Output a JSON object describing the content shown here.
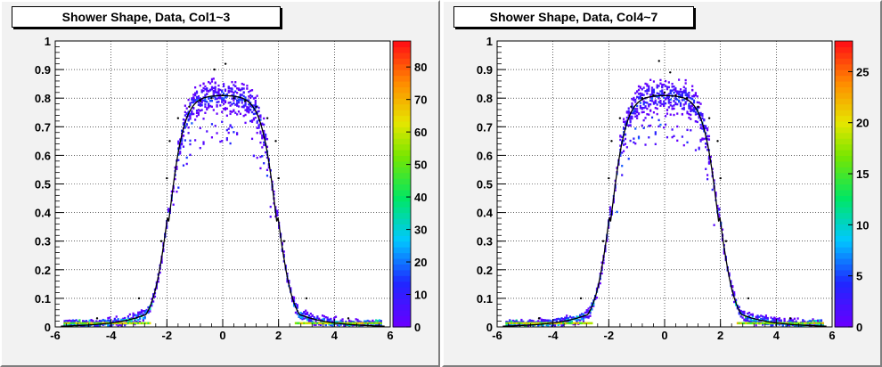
{
  "chart_data": [
    {
      "type": "heatmap",
      "title": "Shower Shape, Data, Col1~3",
      "xlabel": "",
      "ylabel": "",
      "xlim": [
        -6,
        6
      ],
      "ylim": [
        0,
        1
      ],
      "x_ticks": [
        "-6",
        "-4",
        "-2",
        "0",
        "2",
        "4",
        "6"
      ],
      "y_ticks": [
        "0",
        "0.1",
        "0.2",
        "0.3",
        "0.4",
        "0.5",
        "0.6",
        "0.7",
        "0.8",
        "0.9",
        "1"
      ],
      "z_range": [
        0,
        88
      ],
      "z_ticks": [
        "0",
        "10",
        "20",
        "30",
        "40",
        "50",
        "60",
        "70",
        "80"
      ],
      "grid": true,
      "fit_curve": {
        "peak": 0.81,
        "half_width": 1.95,
        "edge_width": 0.28,
        "tail": 0.04
      },
      "points": [
        {
          "x": -2.0,
          "y": 0.52
        },
        {
          "x": -1.9,
          "y": 0.65
        },
        {
          "x": -1.6,
          "y": 0.73
        },
        {
          "x": -1.2,
          "y": 0.77
        },
        {
          "x": -0.8,
          "y": 0.79
        },
        {
          "x": -0.4,
          "y": 0.8
        },
        {
          "x": 0.0,
          "y": 0.81
        },
        {
          "x": 0.4,
          "y": 0.8
        },
        {
          "x": 0.8,
          "y": 0.79
        },
        {
          "x": 1.2,
          "y": 0.77
        },
        {
          "x": 1.6,
          "y": 0.73
        },
        {
          "x": 1.9,
          "y": 0.65
        },
        {
          "x": 2.0,
          "y": 0.52
        },
        {
          "x": -2.2,
          "y": 0.3
        },
        {
          "x": 2.2,
          "y": 0.3
        },
        {
          "x": -3.0,
          "y": 0.1
        },
        {
          "x": 3.0,
          "y": 0.1
        },
        {
          "x": -4.5,
          "y": 0.03
        },
        {
          "x": 4.5,
          "y": 0.03
        },
        {
          "x": 0.1,
          "y": 0.92
        },
        {
          "x": -0.3,
          "y": 0.9
        }
      ]
    },
    {
      "type": "heatmap",
      "title": "Shower Shape, Data, Col4~7",
      "xlabel": "",
      "ylabel": "",
      "xlim": [
        -6,
        6
      ],
      "ylim": [
        0,
        1
      ],
      "x_ticks": [
        "-6",
        "-4",
        "-2",
        "0",
        "2",
        "4",
        "6"
      ],
      "y_ticks": [
        "0",
        "0.1",
        "0.2",
        "0.3",
        "0.4",
        "0.5",
        "0.6",
        "0.7",
        "0.8",
        "0.9",
        "1"
      ],
      "z_range": [
        0,
        28
      ],
      "z_ticks": [
        "0",
        "5",
        "10",
        "15",
        "20",
        "25"
      ],
      "grid": true,
      "fit_curve": {
        "peak": 0.81,
        "half_width": 1.95,
        "edge_width": 0.28,
        "tail": 0.04
      },
      "points": [
        {
          "x": -2.0,
          "y": 0.52
        },
        {
          "x": -1.9,
          "y": 0.65
        },
        {
          "x": -1.6,
          "y": 0.73
        },
        {
          "x": -1.2,
          "y": 0.77
        },
        {
          "x": -0.8,
          "y": 0.8
        },
        {
          "x": -0.4,
          "y": 0.81
        },
        {
          "x": 0.0,
          "y": 0.82
        },
        {
          "x": 0.4,
          "y": 0.81
        },
        {
          "x": 0.8,
          "y": 0.8
        },
        {
          "x": 1.2,
          "y": 0.77
        },
        {
          "x": 1.6,
          "y": 0.73
        },
        {
          "x": 1.9,
          "y": 0.65
        },
        {
          "x": 2.0,
          "y": 0.52
        },
        {
          "x": -2.2,
          "y": 0.3
        },
        {
          "x": 2.2,
          "y": 0.3
        },
        {
          "x": -3.0,
          "y": 0.1
        },
        {
          "x": 3.0,
          "y": 0.1
        },
        {
          "x": -4.5,
          "y": 0.03
        },
        {
          "x": 4.5,
          "y": 0.03
        },
        {
          "x": -0.2,
          "y": 0.93
        },
        {
          "x": 0.2,
          "y": 0.89
        }
      ]
    }
  ]
}
